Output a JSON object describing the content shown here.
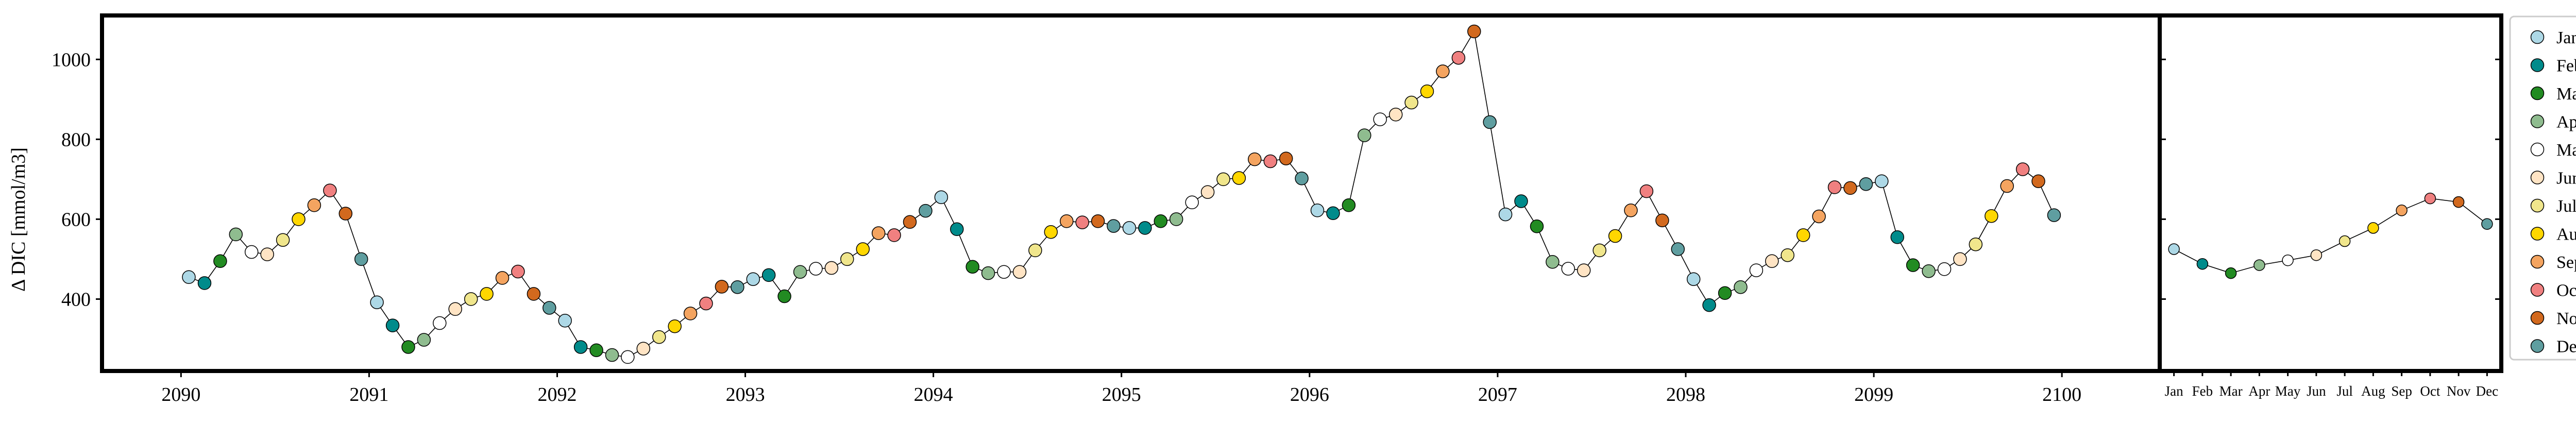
{
  "chart_data": [
    {
      "type": "line",
      "ylabel": "Δ DIC [mmol/m3]",
      "xlabel": "",
      "title": "",
      "ylim": [
        220,
        1110
      ],
      "xlim": [
        2089.58,
        2100.52
      ],
      "yticks": [
        400,
        600,
        800,
        1000
      ],
      "xticks": [
        "2090",
        "2091",
        "2092",
        "2093",
        "2094",
        "2095",
        "2096",
        "2097",
        "2098",
        "2099",
        "2100"
      ],
      "x_start_year": 2090,
      "months_per_year": 12,
      "values": [
        455,
        440,
        495,
        562,
        518,
        512,
        548,
        600,
        635,
        672,
        614,
        500,
        392,
        334,
        280,
        298,
        340,
        375,
        400,
        413,
        453,
        469,
        413,
        378,
        346,
        280,
        272,
        260,
        255,
        276,
        305,
        332,
        364,
        389,
        431,
        430,
        450,
        460,
        407,
        468,
        476,
        478,
        500,
        525,
        565,
        560,
        593,
        621,
        655,
        575,
        481,
        465,
        468,
        468,
        522,
        568,
        595,
        592,
        595,
        583,
        578,
        578,
        595,
        600,
        642,
        668,
        700,
        703,
        750,
        745,
        752,
        702,
        622,
        615,
        635,
        810,
        850,
        862,
        892,
        920,
        970,
        1004,
        1070,
        843,
        612,
        645,
        582,
        493,
        476,
        472,
        522,
        558,
        622,
        670,
        597,
        525,
        450,
        385,
        415,
        430,
        472,
        495,
        510,
        560,
        607,
        680,
        678,
        688,
        695,
        555,
        485,
        470,
        475,
        500,
        537,
        608,
        683,
        725,
        695,
        610
      ],
      "grid": false
    },
    {
      "type": "line",
      "categories": [
        "Jan",
        "Feb",
        "Mar",
        "Apr",
        "May",
        "Jun",
        "Jul",
        "Aug",
        "Sep",
        "Oct",
        "Nov",
        "Dec"
      ],
      "values": [
        525,
        488,
        465,
        485,
        497,
        510,
        545,
        578,
        622,
        652,
        643,
        588
      ],
      "ylim": [
        220,
        1110
      ],
      "grid": false
    }
  ],
  "legend": {
    "placement": "right",
    "items": [
      {
        "label": "Jan",
        "color": "#ADD8E6"
      },
      {
        "label": "Feb",
        "color": "#008B8B"
      },
      {
        "label": "Mar",
        "color": "#228B22"
      },
      {
        "label": "Apr",
        "color": "#8FBC8F"
      },
      {
        "label": "May",
        "color": "#FFFFFF"
      },
      {
        "label": "June",
        "color": "#FFE4C4"
      },
      {
        "label": "July",
        "color": "#F0E68C"
      },
      {
        "label": "Aug",
        "color": "#FFD700"
      },
      {
        "label": "Sept",
        "color": "#F4A460"
      },
      {
        "label": "Oct",
        "color": "#F08080"
      },
      {
        "label": "Nov",
        "color": "#D2691E"
      },
      {
        "label": "Dec",
        "color": "#5F9EA0"
      }
    ]
  }
}
